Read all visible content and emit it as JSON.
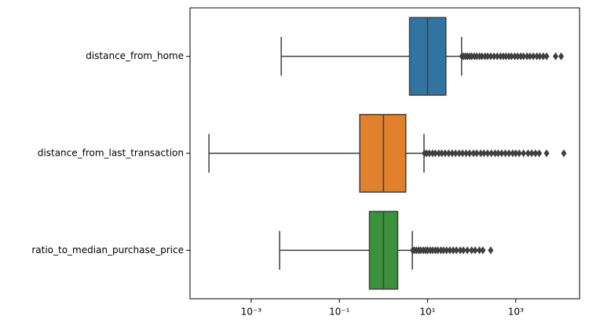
{
  "chart_data": {
    "type": "boxplot",
    "orientation": "horizontal",
    "log_x": true,
    "categories": [
      "distance_from_home",
      "distance_from_last_transaction",
      "ratio_to_median_purchase_price"
    ],
    "series": [
      {
        "color": "#3274a1",
        "whislo": 0.0048,
        "q1": 3.9,
        "med": 10,
        "q3": 26,
        "whishi": 59,
        "fliers": [
          60,
          65,
          72,
          80,
          90,
          100,
          115,
          130,
          150,
          170,
          200,
          230,
          270,
          320,
          380,
          450,
          520,
          600,
          700,
          800,
          950,
          1100,
          1300,
          1500,
          1800,
          2100,
          2500,
          3000,
          3500,
          4200,
          5000,
          8000,
          10700
        ]
      },
      {
        "color": "#e1812c",
        "whislo": 0.00011,
        "q1": 0.29,
        "med": 1.0,
        "q3": 3.2,
        "whishi": 8.3,
        "fliers": [
          8.5,
          9.5,
          11,
          13,
          15,
          18,
          21,
          25,
          30,
          36,
          43,
          52,
          62,
          75,
          90,
          110,
          130,
          160,
          190,
          230,
          280,
          340,
          400,
          480,
          580,
          700,
          850,
          1000,
          1200,
          1500,
          1900,
          2300,
          2800,
          3400,
          5000,
          12300
        ]
      },
      {
        "color": "#3a923a",
        "whislo": 0.0044,
        "q1": 0.48,
        "med": 1.0,
        "q3": 2.1,
        "whishi": 4.5,
        "fliers": [
          4.6,
          5.0,
          5.6,
          6.3,
          7.0,
          8.0,
          9.0,
          10,
          11.5,
          13,
          15,
          17,
          20,
          23,
          27,
          32,
          38,
          45,
          55,
          65,
          80,
          100,
          120,
          150,
          180,
          270
        ]
      }
    ],
    "xlim": [
      4.1e-05,
      28000
    ],
    "xticks": [
      {
        "value": 0.001,
        "label": "10⁻³"
      },
      {
        "value": 0.1,
        "label": "10⁻¹"
      },
      {
        "value": 10,
        "label": "10¹"
      },
      {
        "value": 1000,
        "label": "10³"
      }
    ]
  }
}
